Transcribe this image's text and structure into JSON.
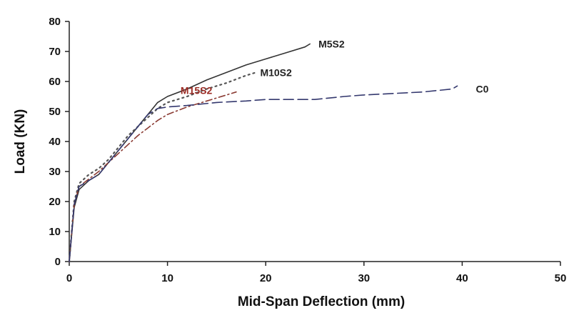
{
  "chart_data": {
    "type": "line",
    "xlabel": "Mid-Span Deflection (mm)",
    "ylabel": "Load (KN)",
    "xlim": [
      0,
      50
    ],
    "ylim": [
      0,
      80
    ],
    "xticks": [
      0,
      10,
      20,
      30,
      40,
      50
    ],
    "yticks": [
      0,
      10,
      20,
      30,
      40,
      50,
      60,
      70,
      80
    ],
    "grid": false,
    "legend": "labels at series ends",
    "series": [
      {
        "name": "M5S2",
        "color": "#333333",
        "style": "solid",
        "x": [
          0,
          0.5,
          1,
          2,
          3,
          4,
          5,
          6,
          7,
          8,
          9,
          10,
          12,
          14,
          16,
          18,
          20,
          22,
          24,
          24.5
        ],
        "y": [
          0,
          18,
          24,
          27,
          29,
          33,
          37,
          41,
          45,
          49,
          53,
          55,
          57.5,
          60.5,
          63,
          65.5,
          67.5,
          69.5,
          71.5,
          72.5
        ]
      },
      {
        "name": "M10S2",
        "color": "#555555",
        "style": "dotted",
        "x": [
          0,
          0.5,
          1,
          2,
          3,
          4,
          5,
          6,
          7,
          8,
          9,
          10,
          12,
          14,
          16,
          18,
          19
        ],
        "y": [
          0,
          20,
          26,
          29,
          31,
          34,
          38,
          42,
          45,
          48,
          51,
          53,
          55,
          57.5,
          59.5,
          62,
          63
        ]
      },
      {
        "name": "M15S2",
        "color": "#8a3a32",
        "style": "dashdot",
        "x": [
          0,
          0.5,
          1,
          2,
          3,
          4,
          5,
          6,
          7,
          8,
          9,
          10,
          12,
          14,
          16,
          17
        ],
        "y": [
          0,
          19,
          25,
          27.5,
          30,
          33,
          36,
          39,
          42,
          44.5,
          47,
          49,
          51.5,
          53.5,
          55.5,
          56.5
        ]
      },
      {
        "name": "C0",
        "color": "#34386e",
        "style": "dashed",
        "x": [
          0,
          0.5,
          1,
          2,
          3,
          4,
          5,
          6,
          7,
          8,
          9,
          10,
          12,
          15,
          18,
          20,
          22,
          25,
          28,
          30,
          33,
          36,
          39,
          39.5
        ],
        "y": [
          0,
          19,
          25,
          27,
          29,
          33,
          37,
          41,
          45,
          49,
          51,
          51.5,
          52,
          53,
          53.5,
          54,
          54,
          54,
          55,
          55.5,
          56,
          56.5,
          57.5,
          58.5
        ]
      }
    ]
  }
}
